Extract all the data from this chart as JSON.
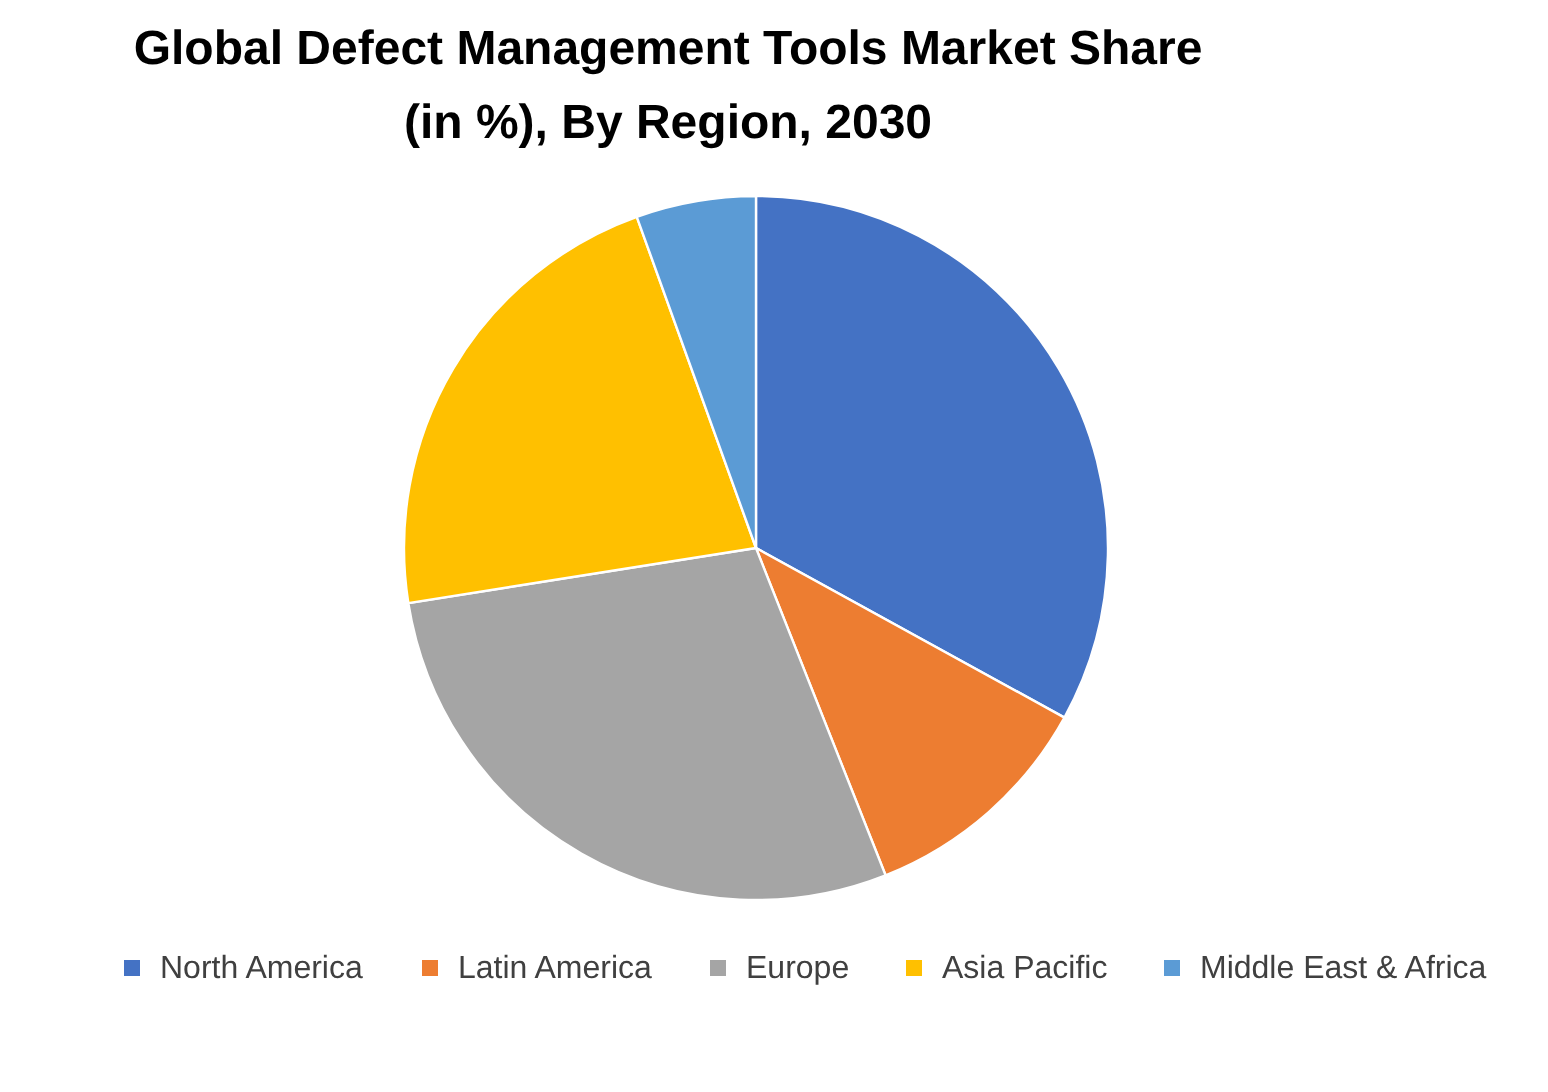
{
  "chart_data": {
    "type": "pie",
    "title": "Global Defect Management Tools Market Share (in %), By Region, 2030",
    "categories": [
      "North America",
      "Latin America",
      "Europe",
      "Asia Pacific",
      "Middle East & Africa"
    ],
    "values": [
      33,
      11,
      28.5,
      22,
      5.5
    ],
    "colors": [
      "#4472c4",
      "#ed7d31",
      "#a5a5a5",
      "#ffc000",
      "#5b9bd5"
    ],
    "legend": "bottom"
  }
}
